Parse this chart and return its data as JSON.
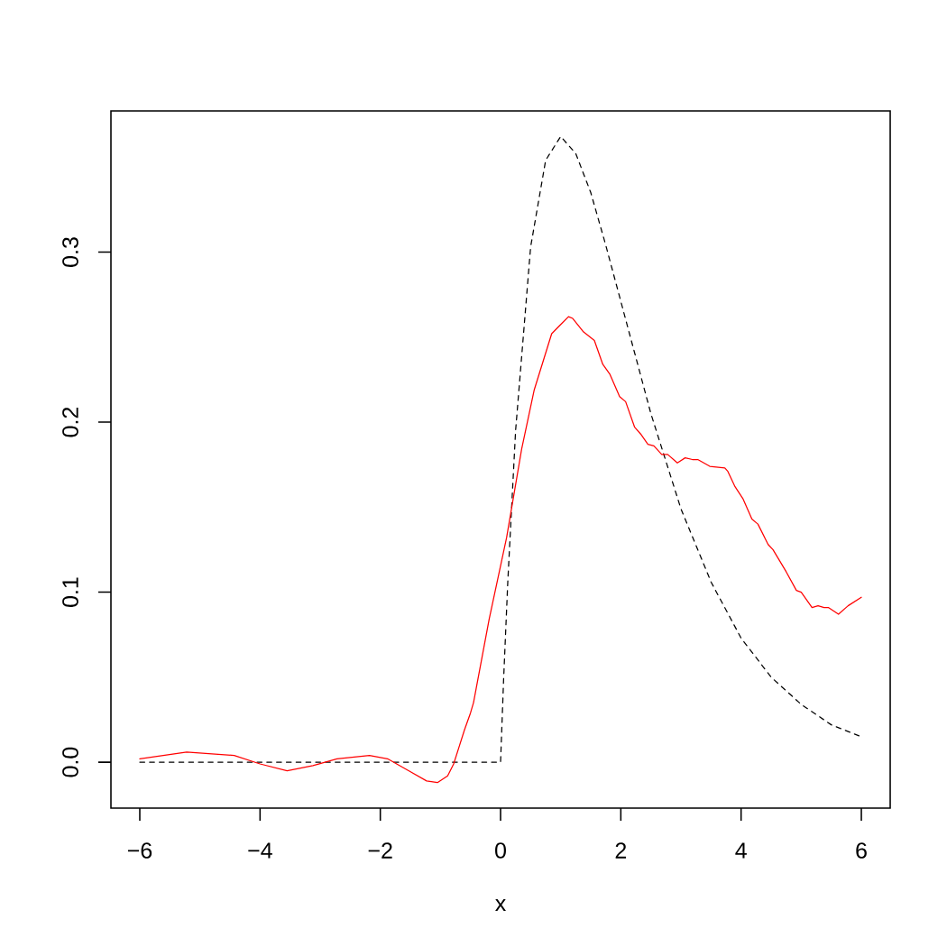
{
  "chart_data": {
    "type": "line",
    "xlabel": "x",
    "xlim": [
      -6.48,
      6.48
    ],
    "ylim": [
      -0.027,
      0.383
    ],
    "xticks": [
      {
        "value": -6,
        "label": "−6"
      },
      {
        "value": -4,
        "label": "−4"
      },
      {
        "value": -2,
        "label": "−2"
      },
      0,
      2,
      4,
      6
    ],
    "yticks": [
      {
        "value": 0,
        "label": "0.0"
      },
      0.1,
      0.2,
      0.3
    ],
    "series": [
      {
        "color": "#000000",
        "line_style": "dashed",
        "x": [
          -6,
          0,
          0.05,
          0.12,
          0.25,
          0.5,
          0.75,
          1,
          1.25,
          1.5,
          1.75,
          2,
          2.5,
          3,
          3.5,
          4,
          4.5,
          5,
          5.5,
          6
        ],
        "values": [
          0,
          0,
          0.048,
          0.106,
          0.195,
          0.303,
          0.354,
          0.368,
          0.358,
          0.335,
          0.304,
          0.271,
          0.205,
          0.149,
          0.106,
          0.073,
          0.05,
          0.034,
          0.022,
          0.015
        ]
      },
      {
        "color": "#ff0000",
        "line_style": "solid",
        "x": [
          -6,
          -5.22,
          -4.43,
          -4.0,
          -3.55,
          -3.12,
          -2.72,
          -2.18,
          -1.88,
          -1.53,
          -1.23,
          -1.05,
          -0.88,
          -0.78,
          -0.6,
          -0.5,
          -0.45,
          -0.19,
          0.1,
          0.35,
          0.56,
          0.85,
          0.99,
          1.13,
          1.2,
          1.38,
          1.56,
          1.7,
          1.82,
          1.98,
          2.08,
          2.23,
          2.33,
          2.45,
          2.55,
          2.68,
          2.78,
          2.94,
          3.07,
          3.19,
          3.28,
          3.48,
          3.73,
          3.78,
          3.9,
          4.03,
          4.18,
          4.28,
          4.45,
          4.53,
          4.75,
          4.92,
          5.0,
          5.18,
          5.28,
          5.38,
          5.45,
          5.62,
          5.78,
          6.0
        ],
        "values": [
          0.002,
          0.006,
          0.004,
          -0.001,
          -0.005,
          -0.002,
          0.002,
          0.004,
          0.002,
          -0.005,
          -0.011,
          -0.012,
          -0.008,
          -0.001,
          0.019,
          0.029,
          0.035,
          0.084,
          0.132,
          0.184,
          0.219,
          0.252,
          0.257,
          0.262,
          0.261,
          0.253,
          0.248,
          0.234,
          0.228,
          0.215,
          0.212,
          0.197,
          0.193,
          0.187,
          0.186,
          0.181,
          0.181,
          0.176,
          0.179,
          0.178,
          0.178,
          0.174,
          0.173,
          0.171,
          0.162,
          0.155,
          0.143,
          0.14,
          0.128,
          0.125,
          0.112,
          0.101,
          0.1,
          0.091,
          0.092,
          0.091,
          0.091,
          0.087,
          0.092,
          0.097
        ]
      }
    ]
  }
}
